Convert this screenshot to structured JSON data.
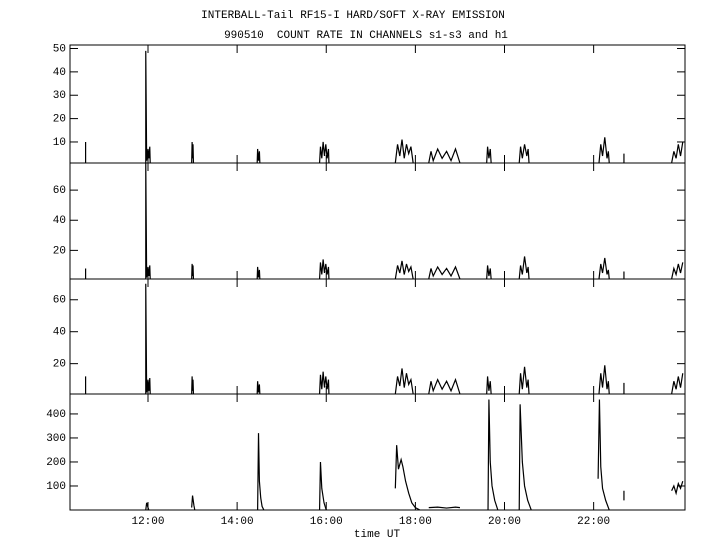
{
  "chart_data": [
    {
      "type": "line",
      "title": "INTERBALL-Tail RF15-I HARD/SOFT X-RAY EMISSION",
      "subtitle": "990510  COUNT RATE IN CHANNELS s1-s3 and h1",
      "xlim": [
        10.25,
        24.05
      ],
      "ylim": [
        1,
        51.5
      ],
      "yticks": [
        10,
        20,
        30,
        40,
        50
      ],
      "x": [
        10.6,
        10.6,
        10.6,
        11.95,
        11.95,
        11.97,
        12.0,
        12.02,
        12.04,
        12.05,
        12.05,
        12.98,
        12.99,
        13.0,
        13.01,
        13.02,
        13.02,
        14.45,
        14.46,
        14.48,
        14.5,
        14.51,
        14.51,
        15.85,
        15.87,
        15.9,
        15.93,
        15.96,
        15.99,
        16.02,
        16.05,
        16.06,
        16.06,
        17.55,
        17.6,
        17.65,
        17.7,
        17.75,
        17.8,
        17.85,
        17.9,
        17.95,
        17.95,
        18.3,
        18.35,
        18.4,
        18.5,
        18.6,
        18.7,
        18.8,
        18.9,
        19.0,
        19.0,
        19.6,
        19.62,
        19.65,
        19.68,
        19.7,
        19.7,
        20.33,
        20.36,
        20.4,
        20.45,
        20.5,
        20.53,
        20.55,
        20.55,
        22.12,
        22.16,
        22.2,
        22.25,
        22.3,
        22.33,
        22.35,
        22.35,
        22.68,
        22.68,
        22.68,
        23.75,
        23.8,
        23.85,
        23.9,
        23.95,
        24.0
      ],
      "series": [
        {
          "color": "#000000",
          "values": [
            1,
            10,
            null,
            1,
            49,
            2,
            7,
            3,
            8,
            1,
            null,
            1,
            10,
            3,
            9,
            1,
            null,
            1,
            7,
            2,
            6,
            1,
            null,
            1,
            8,
            3,
            10,
            4,
            9,
            3,
            7,
            1,
            null,
            1,
            9,
            4,
            11,
            3,
            9,
            5,
            8,
            1,
            null,
            1,
            6,
            2,
            7,
            3,
            6,
            2,
            7,
            1,
            null,
            1,
            8,
            3,
            7,
            1,
            null,
            1,
            8,
            3,
            9,
            4,
            7,
            1,
            null,
            1,
            9,
            4,
            12,
            3,
            6,
            1,
            null,
            1,
            5,
            null,
            1,
            6,
            3,
            9,
            4,
            10
          ]
        }
      ]
    },
    {
      "type": "line",
      "xlim": [
        10.25,
        24.05
      ],
      "ylim": [
        1,
        78
      ],
      "yticks": [
        20,
        40,
        60
      ],
      "x": [
        10.6,
        10.6,
        10.6,
        11.95,
        11.95,
        11.97,
        12.0,
        12.02,
        12.04,
        12.05,
        12.05,
        12.98,
        12.99,
        13.0,
        13.01,
        13.02,
        13.02,
        14.45,
        14.46,
        14.48,
        14.5,
        14.51,
        14.51,
        15.85,
        15.87,
        15.9,
        15.93,
        15.96,
        15.99,
        16.02,
        16.05,
        16.06,
        16.06,
        17.55,
        17.6,
        17.65,
        17.7,
        17.75,
        17.8,
        17.85,
        17.9,
        17.95,
        17.95,
        18.3,
        18.35,
        18.4,
        18.5,
        18.6,
        18.7,
        18.8,
        18.9,
        19.0,
        19.0,
        19.6,
        19.62,
        19.65,
        19.68,
        19.7,
        19.7,
        20.33,
        20.36,
        20.4,
        20.45,
        20.5,
        20.53,
        20.55,
        20.55,
        22.12,
        22.16,
        22.2,
        22.25,
        22.3,
        22.33,
        22.35,
        22.35,
        22.68,
        22.68,
        22.68,
        23.75,
        23.8,
        23.85,
        23.9,
        23.95,
        24.0
      ],
      "series": [
        {
          "color": "#000000",
          "values": [
            1,
            8,
            null,
            1,
            78,
            2,
            9,
            3,
            10,
            1,
            null,
            1,
            11,
            3,
            10,
            1,
            null,
            1,
            9,
            2,
            7,
            1,
            null,
            1,
            12,
            4,
            14,
            5,
            11,
            4,
            9,
            1,
            null,
            1,
            10,
            5,
            13,
            4,
            11,
            6,
            9,
            1,
            null,
            1,
            8,
            3,
            9,
            4,
            8,
            3,
            9,
            1,
            null,
            1,
            10,
            3,
            8,
            1,
            null,
            1,
            10,
            4,
            16,
            5,
            9,
            1,
            null,
            1,
            11,
            5,
            15,
            4,
            7,
            1,
            null,
            1,
            6,
            null,
            1,
            8,
            4,
            11,
            5,
            12
          ]
        }
      ]
    },
    {
      "type": "line",
      "xlim": [
        10.25,
        24.05
      ],
      "ylim": [
        1,
        73
      ],
      "yticks": [
        20,
        40,
        60
      ],
      "x": [
        10.6,
        10.6,
        10.6,
        11.95,
        11.95,
        11.97,
        12.0,
        12.02,
        12.04,
        12.05,
        12.05,
        12.98,
        12.99,
        13.0,
        13.01,
        13.02,
        13.02,
        14.45,
        14.46,
        14.48,
        14.5,
        14.51,
        14.51,
        15.85,
        15.87,
        15.9,
        15.93,
        15.96,
        15.99,
        16.02,
        16.05,
        16.06,
        16.06,
        17.55,
        17.6,
        17.65,
        17.7,
        17.75,
        17.8,
        17.85,
        17.9,
        17.95,
        17.95,
        18.3,
        18.35,
        18.4,
        18.5,
        18.6,
        18.7,
        18.8,
        18.9,
        19.0,
        19.0,
        19.6,
        19.62,
        19.65,
        19.68,
        19.7,
        19.7,
        20.33,
        20.36,
        20.4,
        20.45,
        20.5,
        20.53,
        20.55,
        20.55,
        22.12,
        22.16,
        22.2,
        22.25,
        22.3,
        22.33,
        22.35,
        22.35,
        22.68,
        22.68,
        22.68,
        23.75,
        23.8,
        23.85,
        23.9,
        23.95,
        24.0
      ],
      "series": [
        {
          "color": "#000000",
          "values": [
            1,
            12,
            null,
            1,
            70,
            2,
            10,
            3,
            11,
            1,
            null,
            1,
            12,
            3,
            10,
            1,
            null,
            1,
            9,
            2,
            7,
            1,
            null,
            1,
            13,
            4,
            15,
            5,
            12,
            4,
            10,
            1,
            null,
            1,
            12,
            6,
            17,
            5,
            14,
            7,
            10,
            1,
            null,
            1,
            9,
            3,
            10,
            4,
            9,
            3,
            10,
            1,
            null,
            1,
            12,
            3,
            9,
            1,
            null,
            1,
            14,
            4,
            18,
            5,
            10,
            1,
            null,
            1,
            14,
            5,
            19,
            4,
            9,
            1,
            null,
            1,
            8,
            null,
            1,
            9,
            4,
            12,
            5,
            14
          ]
        }
      ]
    },
    {
      "type": "line",
      "xlabel": "time UT",
      "xlim": [
        10.25,
        24.05
      ],
      "ylim": [
        0,
        483
      ],
      "yticks": [
        100,
        200,
        300,
        400
      ],
      "xticks": [
        {
          "value": 12,
          "label": "12:00"
        },
        {
          "value": 14,
          "label": "14:00"
        },
        {
          "value": 16,
          "label": "16:00"
        },
        {
          "value": 18,
          "label": "18:00"
        },
        {
          "value": 20,
          "label": "20:00"
        },
        {
          "value": 22,
          "label": "22:00"
        }
      ],
      "x": [
        11.95,
        11.97,
        12.0,
        12.02,
        12.02,
        12.98,
        13.0,
        13.03,
        13.05,
        13.05,
        14.46,
        14.48,
        14.5,
        14.53,
        14.56,
        14.6,
        14.6,
        15.85,
        15.87,
        15.9,
        15.95,
        16.0,
        16.0,
        17.55,
        17.58,
        17.62,
        17.68,
        17.72,
        17.78,
        17.85,
        17.92,
        18.0,
        18.1,
        18.1,
        18.3,
        18.5,
        18.7,
        18.9,
        19.0,
        19.0,
        19.63,
        19.65,
        19.68,
        19.72,
        19.78,
        19.85,
        19.85,
        20.33,
        20.35,
        20.4,
        20.45,
        20.52,
        20.6,
        20.6,
        22.1,
        22.13,
        22.16,
        22.2,
        22.27,
        22.35,
        22.35,
        22.68,
        22.68,
        22.68,
        23.75,
        23.8,
        23.85,
        23.9,
        23.95,
        24.0
      ],
      "series": [
        {
          "color": "#000000",
          "values": [
            0,
            30,
            10,
            0,
            null,
            10,
            60,
            20,
            0,
            null,
            0,
            320,
            120,
            50,
            15,
            0,
            null,
            0,
            200,
            90,
            30,
            0,
            null,
            90,
            270,
            170,
            210,
            180,
            120,
            70,
            30,
            10,
            0,
            null,
            10,
            12,
            8,
            12,
            10,
            null,
            0,
            460,
            200,
            100,
            40,
            0,
            null,
            0,
            440,
            200,
            100,
            40,
            0,
            null,
            130,
            460,
            180,
            90,
            40,
            0,
            null,
            40,
            80,
            null,
            80,
            100,
            70,
            110,
            90,
            120
          ]
        }
      ]
    }
  ]
}
